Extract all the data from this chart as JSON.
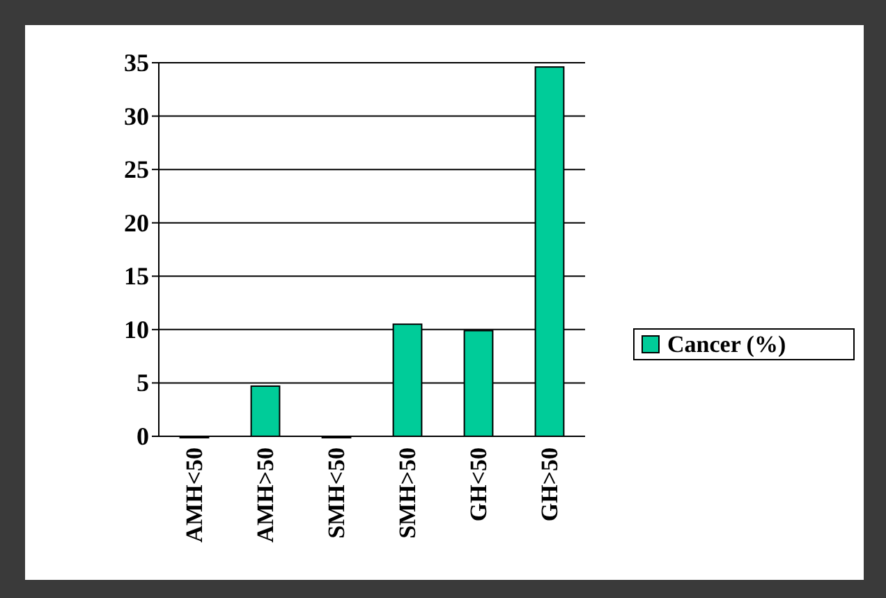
{
  "chart_data": {
    "type": "bar",
    "categories": [
      "AMH<50",
      "AMH>50",
      "SMH<50",
      "SMH>50",
      "GH<50",
      "GH>50"
    ],
    "series": [
      {
        "name": "Cancer (%)",
        "color": "#00cc99",
        "values": [
          0,
          4.7,
          0,
          10.5,
          9.9,
          34.6
        ]
      }
    ],
    "ylim": [
      0,
      35
    ],
    "yticks": [
      0,
      5,
      10,
      15,
      20,
      25,
      30,
      35
    ],
    "grid": "y",
    "legend": "right"
  }
}
